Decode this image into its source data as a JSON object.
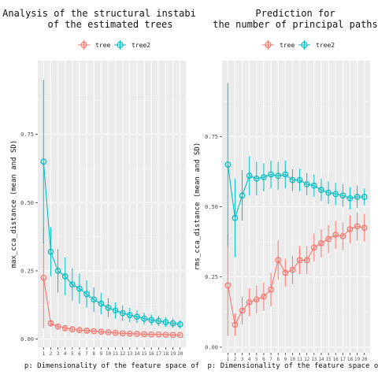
{
  "chart_data": [
    {
      "type": "line",
      "title_lines": [
        "Analysis of the structural instabi",
        "of the estimated trees"
      ],
      "xlabel": "p: Dimensionality of the feature space of",
      "ylabel": "max_cca_distance (mean and SD)",
      "x": [
        1,
        2,
        3,
        4,
        5,
        6,
        7,
        8,
        9,
        10,
        11,
        12,
        13,
        14,
        15,
        16,
        17,
        18,
        19,
        20
      ],
      "x_tick_labels": [
        "1",
        "2",
        "3",
        "4",
        "5",
        "6",
        "7",
        "8",
        "9",
        "10",
        "11",
        "12",
        "13",
        "14",
        "15",
        "16",
        "17",
        "18",
        "19",
        "20"
      ],
      "ylim": [
        -0.03,
        1.02
      ],
      "y_ticks": [
        0.0,
        0.25,
        0.5,
        0.75
      ],
      "y_tick_labels": [
        "0.00",
        "0.25",
        "0.50",
        "0.75"
      ],
      "grid": true,
      "legend_position": "top",
      "series": [
        {
          "name": "tree",
          "color": "#F8766D",
          "values": [
            0.225,
            0.058,
            0.046,
            0.04,
            0.036,
            0.033,
            0.031,
            0.029,
            0.027,
            0.025,
            0.023,
            0.021,
            0.02,
            0.019,
            0.018,
            0.017,
            0.017,
            0.016,
            0.015,
            0.015
          ],
          "sd": [
            0.185,
            0.012,
            0.01,
            0.009,
            0.008,
            0.007,
            0.007,
            0.006,
            0.006,
            0.006,
            0.005,
            0.005,
            0.005,
            0.005,
            0.004,
            0.004,
            0.004,
            0.004,
            0.004,
            0.004
          ]
        },
        {
          "name": "tree2",
          "color": "#00BFC4",
          "values": [
            0.65,
            0.32,
            0.25,
            0.23,
            0.2,
            0.185,
            0.165,
            0.145,
            0.13,
            0.115,
            0.105,
            0.095,
            0.088,
            0.082,
            0.075,
            0.07,
            0.066,
            0.062,
            0.058,
            0.054
          ],
          "sd": [
            0.3,
            0.09,
            0.08,
            0.07,
            0.06,
            0.055,
            0.05,
            0.045,
            0.04,
            0.035,
            0.03,
            0.028,
            0.026,
            0.024,
            0.022,
            0.02,
            0.019,
            0.018,
            0.017,
            0.016
          ]
        }
      ]
    },
    {
      "type": "line",
      "title_lines": [
        "Prediction for",
        "the number of principal paths"
      ],
      "xlabel": "p: Dimensionality of the feature space of t",
      "ylabel": "rms_cca_distance (mean and SD)",
      "x": [
        1,
        2,
        3,
        4,
        5,
        6,
        7,
        8,
        9,
        10,
        11,
        12,
        13,
        14,
        15,
        16,
        17,
        18,
        19,
        20
      ],
      "x_tick_labels": [
        "1",
        "2",
        "3",
        "4",
        "5",
        "6",
        "7",
        "8",
        "9",
        "10",
        "11",
        "12",
        "13",
        "14",
        "15",
        "16",
        "17",
        "18",
        "19",
        "20"
      ],
      "ylim": [
        -0.02,
        1.02
      ],
      "y_ticks": [
        0.0,
        0.25,
        0.5,
        0.75
      ],
      "y_tick_labels": [
        "0.00",
        "0.25",
        "0.50",
        "0.75"
      ],
      "grid": true,
      "legend_position": "top",
      "series": [
        {
          "name": "tree",
          "color": "#F8766D",
          "values": [
            0.22,
            0.08,
            0.13,
            0.16,
            0.17,
            0.18,
            0.205,
            0.31,
            0.265,
            0.275,
            0.31,
            0.31,
            0.355,
            0.37,
            0.385,
            0.4,
            0.395,
            0.42,
            0.43,
            0.425
          ],
          "sd": [
            0.18,
            0.04,
            0.05,
            0.05,
            0.05,
            0.05,
            0.06,
            0.07,
            0.05,
            0.05,
            0.05,
            0.05,
            0.05,
            0.05,
            0.05,
            0.05,
            0.05,
            0.05,
            0.05,
            0.05
          ]
        },
        {
          "name": "tree2",
          "color": "#00BFC4",
          "values": [
            0.65,
            0.46,
            0.54,
            0.61,
            0.6,
            0.605,
            0.615,
            0.61,
            0.615,
            0.595,
            0.595,
            0.58,
            0.575,
            0.56,
            0.55,
            0.545,
            0.54,
            0.53,
            0.535,
            0.535
          ],
          "sd": [
            0.29,
            0.14,
            0.09,
            0.07,
            0.06,
            0.05,
            0.05,
            0.05,
            0.05,
            0.04,
            0.04,
            0.04,
            0.04,
            0.04,
            0.04,
            0.04,
            0.04,
            0.04,
            0.04,
            0.03
          ]
        }
      ]
    }
  ]
}
